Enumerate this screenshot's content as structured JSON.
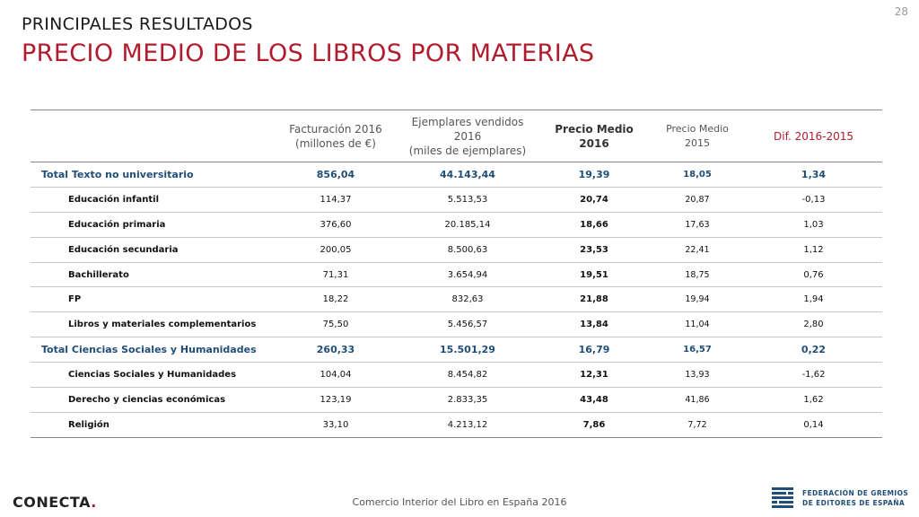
{
  "page_number": "28",
  "section_title": "PRINCIPALES RESULTADOS",
  "main_title": "PRECIO MEDIO DE LOS LIBROS POR MATERIAS",
  "table": {
    "headers": {
      "facturacion_1": "Facturación 2016",
      "facturacion_2": "(millones de €)",
      "ejemplares_1": "Ejemplares vendidos 2016",
      "ejemplares_2": "(miles de ejemplares)",
      "precio2016_1": "Precio Medio",
      "precio2016_2": "2016",
      "precio2015_1": "Precio Medio",
      "precio2015_2": "2015",
      "dif": "Dif. 2016-2015"
    },
    "rows": [
      {
        "label": "Total Texto no universitario",
        "facturacion": "856,04",
        "ejemplares": "44.143,44",
        "precio2016": "19,39",
        "precio2015": "18,05",
        "dif": "1,34"
      },
      {
        "label": "Educación infantil",
        "facturacion": "114,37",
        "ejemplares": "5.513,53",
        "precio2016": "20,74",
        "precio2015": "20,87",
        "dif": "-0,13"
      },
      {
        "label": "Educación primaria",
        "facturacion": "376,60",
        "ejemplares": "20.185,14",
        "precio2016": "18,66",
        "precio2015": "17,63",
        "dif": "1,03"
      },
      {
        "label": "Educación secundaria",
        "facturacion": "200,05",
        "ejemplares": "8.500,63",
        "precio2016": "23,53",
        "precio2015": "22,41",
        "dif": "1,12"
      },
      {
        "label": "Bachillerato",
        "facturacion": "71,31",
        "ejemplares": "3.654,94",
        "precio2016": "19,51",
        "precio2015": "18,75",
        "dif": "0,76"
      },
      {
        "label": "FP",
        "facturacion": "18,22",
        "ejemplares": "832,63",
        "precio2016": "21,88",
        "precio2015": "19,94",
        "dif": "1,94"
      },
      {
        "label": "Libros y materiales complementarios",
        "facturacion": "75,50",
        "ejemplares": "5.456,57",
        "precio2016": "13,84",
        "precio2015": "11,04",
        "dif": "2,80"
      },
      {
        "label": "Total Ciencias Sociales y Humanidades",
        "facturacion": "260,33",
        "ejemplares": "15.501,29",
        "precio2016": "16,79",
        "precio2015": "16,57",
        "dif": "0,22"
      },
      {
        "label": "Ciencias Sociales y Humanidades",
        "facturacion": "104,04",
        "ejemplares": "8.454,82",
        "precio2016": "12,31",
        "precio2015": "13,93",
        "dif": "-1,62"
      },
      {
        "label": "Derecho y ciencias económicas",
        "facturacion": "123,19",
        "ejemplares": "2.833,35",
        "precio2016": "43,48",
        "precio2015": "41,86",
        "dif": "1,62"
      },
      {
        "label": "Religión",
        "facturacion": "33,10",
        "ejemplares": "4.213,12",
        "precio2016": "7,86",
        "precio2015": "7,72",
        "dif": "0,14"
      }
    ]
  },
  "footer": {
    "text": "Comercio Interior del Libro en España 2016",
    "left_logo_text": "CONECTA",
    "left_logo_dot": ".",
    "right_logo_line1": "FEDERACIÓN DE GREMIOS",
    "right_logo_line2": "DE EDITORES DE ESPAÑA",
    "right_logo_icon": "fge-emblem-icon"
  },
  "colors": {
    "accent_red": "#b01c2e",
    "total_blue": "#1f4e79"
  }
}
